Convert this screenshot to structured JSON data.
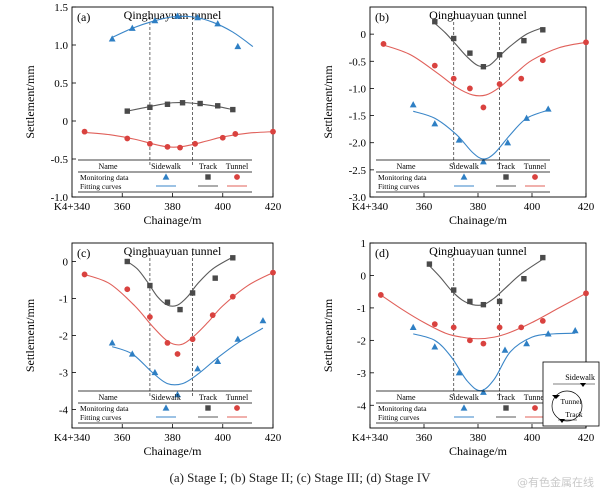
{
  "caption": "(a) Stage I; (b) Stage II; (c) Stage III; (d) Stage IV",
  "watermark": "@有色金属在线",
  "colors": {
    "sidewalk": "#2e7fc4",
    "track": "#4a4a4a",
    "tunnel": "#d9423f",
    "fit_sidewalk": "#3a86c8",
    "fit_track": "#5a5a5a",
    "fit_tunnel": "#e0605a",
    "grid": "#444444"
  },
  "legend": {
    "col_headers": [
      "Name",
      "Sidewalk",
      "Track",
      "Tunnel"
    ],
    "row_labels": [
      "Monitoring data",
      "Fitting curves"
    ]
  },
  "inset_diagram": {
    "labels": [
      "Sidewalk",
      "Tunnel",
      "Track"
    ]
  },
  "chart_data": [
    {
      "type": "line",
      "panel_label": "(a)",
      "title": "Qinghuayuan tunnel",
      "xlabel": "Chainage/m",
      "ylabel": "Settlement/mm",
      "xlim": [
        340,
        420
      ],
      "ylim": [
        -1.0,
        1.5
      ],
      "x_ticks": [
        340,
        360,
        380,
        400,
        420
      ],
      "x_tick_labels": [
        "K4+340",
        "360",
        "380",
        "400",
        "420"
      ],
      "y_ticks": [
        -1.0,
        -0.5,
        0,
        0.5,
        1.0,
        1.5
      ],
      "y_tick_labels": [
        "-1.0",
        "-0.5",
        "0",
        "0.5",
        "1.0",
        "1.5"
      ],
      "dashed_lines_x": [
        371,
        388
      ],
      "series": [
        {
          "name": "Sidewalk",
          "marker": "triangle",
          "x": [
            356,
            364,
            373,
            382,
            390,
            398,
            406
          ],
          "y": [
            1.08,
            1.22,
            1.32,
            1.38,
            1.36,
            1.28,
            0.98
          ],
          "fit_x": [
            356,
            364,
            372,
            380,
            388,
            396,
            404,
            412
          ],
          "fit_y": [
            1.1,
            1.22,
            1.31,
            1.37,
            1.37,
            1.3,
            1.17,
            0.98
          ]
        },
        {
          "name": "Track",
          "marker": "square",
          "x": [
            362,
            371,
            378,
            384,
            391,
            398,
            404
          ],
          "y": [
            0.13,
            0.18,
            0.22,
            0.24,
            0.23,
            0.2,
            0.15
          ],
          "fit_x": [
            362,
            368,
            374,
            380,
            386,
            392,
            398,
            404
          ],
          "fit_y": [
            0.13,
            0.17,
            0.21,
            0.24,
            0.24,
            0.22,
            0.19,
            0.15
          ]
        },
        {
          "name": "Tunnel",
          "marker": "circle",
          "x": [
            345,
            362,
            371,
            378,
            383,
            389,
            400,
            405,
            420
          ],
          "y": [
            -0.14,
            -0.23,
            -0.3,
            -0.34,
            -0.35,
            -0.3,
            -0.22,
            -0.17,
            -0.14
          ],
          "fit_x": [
            345,
            355,
            365,
            372,
            378,
            383,
            388,
            394,
            400,
            410,
            420
          ],
          "fit_y": [
            -0.15,
            -0.18,
            -0.24,
            -0.3,
            -0.34,
            -0.34,
            -0.31,
            -0.26,
            -0.21,
            -0.16,
            -0.14
          ]
        }
      ]
    },
    {
      "type": "line",
      "panel_label": "(b)",
      "title": "Qinghuayuan tunnel",
      "xlabel": "Chainage/m",
      "ylabel": "Settlement/mm",
      "xlim": [
        340,
        420
      ],
      "ylim": [
        -3.0,
        0.5
      ],
      "x_ticks": [
        340,
        360,
        380,
        400,
        420
      ],
      "x_tick_labels": [
        "K4+340",
        "360",
        "380",
        "400",
        "420"
      ],
      "y_ticks": [
        -3.0,
        -2.5,
        -2.0,
        -1.5,
        -1.0,
        -0.5,
        0
      ],
      "y_tick_labels": [
        "-3.0",
        "-2.5",
        "-2.0",
        "-1.5",
        "-1.0",
        "-0.5",
        "0"
      ],
      "dashed_lines_x": [
        371,
        388
      ],
      "series": [
        {
          "name": "Sidewalk",
          "marker": "triangle",
          "x": [
            356,
            364,
            373,
            382,
            391,
            398,
            406
          ],
          "y": [
            -1.3,
            -1.65,
            -1.95,
            -2.35,
            -2.0,
            -1.55,
            -1.38
          ],
          "fit_x": [
            356,
            364,
            372,
            378,
            382,
            386,
            392,
            398,
            406
          ],
          "fit_y": [
            -1.42,
            -1.55,
            -1.85,
            -2.18,
            -2.3,
            -2.2,
            -1.85,
            -1.55,
            -1.4
          ]
        },
        {
          "name": "Track",
          "marker": "square",
          "x": [
            364,
            371,
            377,
            382,
            388,
            397,
            404
          ],
          "y": [
            0.23,
            -0.08,
            -0.35,
            -0.6,
            -0.38,
            -0.12,
            0.08
          ],
          "fit_x": [
            364,
            368,
            372,
            376,
            380,
            384,
            388,
            392,
            398,
            404
          ],
          "fit_y": [
            0.2,
            0.02,
            -0.2,
            -0.42,
            -0.58,
            -0.58,
            -0.4,
            -0.22,
            0.0,
            0.12
          ]
        },
        {
          "name": "Tunnel",
          "marker": "circle",
          "x": [
            345,
            364,
            371,
            377,
            382,
            388,
            396,
            404,
            420
          ],
          "y": [
            -0.18,
            -0.58,
            -0.82,
            -1.0,
            -1.35,
            -0.92,
            -0.82,
            -0.48,
            -0.15
          ],
          "fit_x": [
            345,
            355,
            365,
            372,
            378,
            383,
            388,
            394,
            400,
            410,
            420
          ],
          "fit_y": [
            -0.2,
            -0.38,
            -0.72,
            -0.98,
            -1.12,
            -1.12,
            -0.98,
            -0.72,
            -0.48,
            -0.25,
            -0.15
          ]
        }
      ]
    },
    {
      "type": "line",
      "panel_label": "(c)",
      "title": "Qinghuayuan tunnel",
      "xlabel": "Chainage/m",
      "ylabel": "Settlement/mm",
      "xlim": [
        340,
        420
      ],
      "ylim": [
        -4.5,
        0.5
      ],
      "x_ticks": [
        340,
        360,
        380,
        400,
        420
      ],
      "x_tick_labels": [
        "K4+340",
        "360",
        "380",
        "400",
        "420"
      ],
      "y_ticks": [
        -4,
        -3,
        -2,
        -1,
        0
      ],
      "y_tick_labels": [
        "-4",
        "-3",
        "-2",
        "-1",
        "0"
      ],
      "dashed_lines_x": [
        371,
        388
      ],
      "series": [
        {
          "name": "Sidewalk",
          "marker": "triangle",
          "x": [
            356,
            364,
            373,
            382,
            390,
            398,
            406,
            416
          ],
          "y": [
            -2.2,
            -2.5,
            -3.0,
            -3.6,
            -2.9,
            -2.7,
            -2.1,
            -1.6
          ],
          "fit_x": [
            356,
            364,
            372,
            378,
            384,
            390,
            398,
            406,
            416
          ],
          "fit_y": [
            -2.3,
            -2.5,
            -3.0,
            -3.3,
            -3.3,
            -3.05,
            -2.6,
            -2.2,
            -1.8
          ]
        },
        {
          "name": "Track",
          "marker": "square",
          "x": [
            362,
            371,
            378,
            383,
            388,
            397,
            404
          ],
          "y": [
            0.0,
            -0.65,
            -1.1,
            -1.3,
            -0.85,
            -0.45,
            0.1
          ],
          "fit_x": [
            362,
            366,
            370,
            374,
            378,
            382,
            386,
            390,
            396,
            404
          ],
          "fit_y": [
            0.0,
            -0.2,
            -0.55,
            -0.95,
            -1.18,
            -1.18,
            -0.95,
            -0.6,
            -0.2,
            0.12
          ]
        },
        {
          "name": "Tunnel",
          "marker": "circle",
          "x": [
            345,
            362,
            371,
            378,
            382,
            388,
            396,
            404,
            420
          ],
          "y": [
            -0.35,
            -0.75,
            -1.5,
            -2.2,
            -2.5,
            -2.1,
            -1.45,
            -0.95,
            -0.3
          ],
          "fit_x": [
            345,
            355,
            365,
            372,
            378,
            383,
            388,
            394,
            400,
            410,
            420
          ],
          "fit_y": [
            -0.35,
            -0.6,
            -1.2,
            -1.75,
            -2.15,
            -2.25,
            -2.05,
            -1.65,
            -1.2,
            -0.65,
            -0.3
          ]
        }
      ]
    },
    {
      "type": "line",
      "panel_label": "(d)",
      "title": "Qinghuayuan tunnel",
      "xlabel": "Chainage/m",
      "ylabel": "Settlement/mm",
      "xlim": [
        340,
        420
      ],
      "ylim": [
        -4.7,
        1.0
      ],
      "x_ticks": [
        340,
        360,
        380,
        400,
        420
      ],
      "x_tick_labels": [
        "K4+340",
        "360",
        "380",
        "400",
        "420"
      ],
      "y_ticks": [
        -4,
        -3,
        -2,
        -1,
        0,
        1
      ],
      "y_tick_labels": [
        "-4",
        "-3",
        "-2",
        "-1",
        "0",
        "1"
      ],
      "dashed_lines_x": [
        371,
        388
      ],
      "series": [
        {
          "name": "Sidewalk",
          "marker": "triangle",
          "x": [
            356,
            364,
            373,
            382,
            390,
            398,
            406,
            416
          ],
          "y": [
            -1.6,
            -2.2,
            -3.0,
            -3.6,
            -2.3,
            -2.1,
            -1.8,
            -1.7
          ],
          "fit_x": [
            356,
            364,
            370,
            376,
            381,
            386,
            392,
            400,
            408,
            416
          ],
          "fit_y": [
            -1.8,
            -2.0,
            -2.5,
            -3.25,
            -3.55,
            -3.2,
            -2.35,
            -1.9,
            -1.8,
            -1.78
          ]
        },
        {
          "name": "Track",
          "marker": "square",
          "x": [
            362,
            371,
            377,
            382,
            388,
            397,
            404
          ],
          "y": [
            0.35,
            -0.45,
            -0.8,
            -0.9,
            -0.8,
            -0.1,
            0.55
          ],
          "fit_x": [
            362,
            366,
            370,
            374,
            378,
            382,
            386,
            390,
            396,
            404
          ],
          "fit_y": [
            0.3,
            -0.05,
            -0.45,
            -0.75,
            -0.9,
            -0.9,
            -0.7,
            -0.4,
            0.05,
            0.5
          ]
        },
        {
          "name": "Tunnel",
          "marker": "circle",
          "x": [
            344,
            364,
            371,
            377,
            382,
            388,
            396,
            404,
            420
          ],
          "y": [
            -0.6,
            -1.5,
            -1.6,
            -2.0,
            -2.1,
            -1.6,
            -1.6,
            -1.4,
            -0.55
          ],
          "fit_x": [
            344,
            352,
            360,
            368,
            374,
            380,
            386,
            392,
            400,
            410,
            420
          ],
          "fit_y": [
            -0.6,
            -1.05,
            -1.45,
            -1.78,
            -1.9,
            -1.95,
            -1.9,
            -1.75,
            -1.45,
            -1.0,
            -0.55
          ]
        }
      ]
    }
  ]
}
